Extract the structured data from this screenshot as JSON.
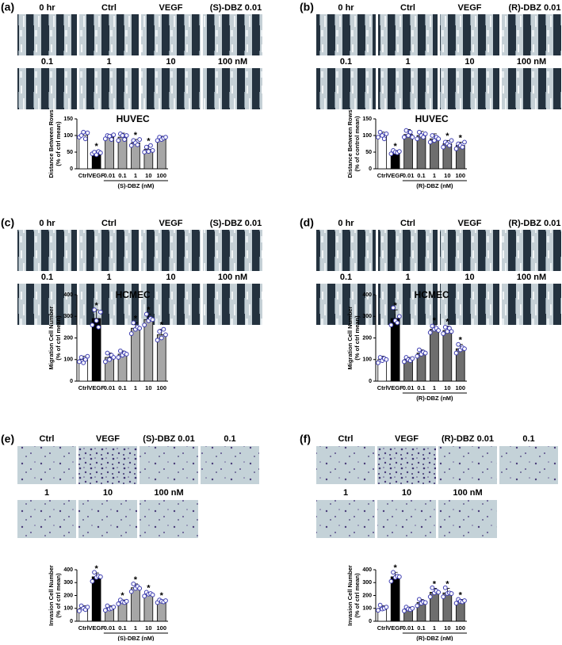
{
  "panels": [
    {
      "label": "(a)",
      "image_labels": [
        "0 hr",
        "Ctrl",
        "VEGF",
        "(S)-DBZ 0.01",
        "0.1",
        "1",
        "10",
        "100 nM"
      ]
    },
    {
      "label": "(b)",
      "image_labels": [
        "0 hr",
        "Ctrl",
        "VEGF",
        "(R)-DBZ 0.01",
        "0.1",
        "1",
        "10",
        "100 nM"
      ]
    },
    {
      "label": "(c)",
      "image_labels": [
        "0 hr",
        "Ctrl",
        "VEGF",
        "(S)-DBZ 0.01",
        "0.1",
        "1",
        "10",
        "100 nM"
      ]
    },
    {
      "label": "(d)",
      "image_labels": [
        "0 hr",
        "Ctrl",
        "VEGF",
        "(R)-DBZ 0.01",
        "0.1",
        "1",
        "10",
        "100 nM"
      ]
    },
    {
      "label": "(e)",
      "image_labels": [
        "Ctrl",
        "VEGF",
        "(S)-DBZ 0.01",
        "0.1",
        "1",
        "10",
        "100 nM"
      ]
    },
    {
      "label": "(f)",
      "image_labels": [
        "Ctrl",
        "VEGF",
        "(R)-DBZ 0.01",
        "0.1",
        "1",
        "10",
        "100 nM"
      ]
    }
  ],
  "chart_data": [
    {
      "type": "bar",
      "title": "HUVEC",
      "ylabel": [
        "Distance Between Rows",
        "(% of ctrl mean)"
      ],
      "xlabel": "(S)-DBZ (nM)",
      "categories": [
        "Ctrl",
        "VEGF",
        "0.01",
        "0.1",
        "1",
        "10",
        "100"
      ],
      "values": [
        100,
        48,
        95,
        95,
        78,
        58,
        90
      ],
      "errors": [
        10,
        6,
        8,
        12,
        10,
        12,
        8
      ],
      "colors": [
        "#ffffff",
        "#000000",
        "#a6a6a6",
        "#a6a6a6",
        "#a6a6a6",
        "#a6a6a6",
        "#a6a6a6"
      ],
      "points": [
        [
          95,
          100,
          110,
          90,
          108
        ],
        [
          45,
          50,
          42,
          52,
          48
        ],
        [
          90,
          100,
          98,
          88,
          102
        ],
        [
          85,
          105,
          100,
          88,
          100
        ],
        [
          70,
          85,
          78,
          72,
          88
        ],
        [
          50,
          65,
          52,
          70,
          55
        ],
        [
          85,
          95,
          88,
          92,
          95
        ]
      ],
      "markers": [
        null,
        "*",
        null,
        null,
        "*",
        "*",
        null
      ],
      "ylim": [
        0,
        150
      ],
      "yticks": [
        0,
        50,
        100,
        150
      ]
    },
    {
      "type": "bar",
      "title": "HUVEC",
      "ylabel": [
        "Distance Between Rows",
        "(% of control mean)"
      ],
      "xlabel": "(R)-DBZ (nM)",
      "categories": [
        "Ctrl",
        "VEGF",
        "0.01",
        "0.1",
        "1",
        "10",
        "100"
      ],
      "values": [
        100,
        50,
        103,
        100,
        90,
        75,
        70
      ],
      "errors": [
        10,
        5,
        15,
        12,
        15,
        10,
        10
      ],
      "colors": [
        "#ffffff",
        "#000000",
        "#6e6e6e",
        "#6e6e6e",
        "#6e6e6e",
        "#6e6e6e",
        "#6e6e6e"
      ],
      "points": [
        [
          95,
          110,
          100,
          90,
          105
        ],
        [
          45,
          55,
          50,
          48,
          52
        ],
        [
          95,
          115,
          100,
          110,
          95
        ],
        [
          90,
          110,
          100,
          95,
          105
        ],
        [
          80,
          100,
          85,
          95,
          90
        ],
        [
          65,
          80,
          75,
          70,
          85
        ],
        [
          60,
          75,
          70,
          65,
          80
        ]
      ],
      "markers": [
        null,
        "*",
        null,
        null,
        null,
        "*",
        "*"
      ],
      "ylim": [
        0,
        150
      ],
      "yticks": [
        0,
        50,
        100,
        150
      ]
    },
    {
      "type": "bar",
      "title": "HCMEC",
      "ylabel": [
        "Migration Cell Number",
        "(% of ctrl mean)"
      ],
      "categories": [
        "Ctrl",
        "VEGF",
        "0.01",
        "0.1",
        "1",
        "10",
        "100"
      ],
      "values": [
        100,
        290,
        110,
        125,
        245,
        285,
        215
      ],
      "errors": [
        15,
        40,
        20,
        15,
        25,
        25,
        25
      ],
      "colors": [
        "#ffffff",
        "#000000",
        "#a6a6a6",
        "#a6a6a6",
        "#a6a6a6",
        "#a6a6a6",
        "#a6a6a6"
      ],
      "points": [
        [
          90,
          110,
          85,
          100,
          115
        ],
        [
          260,
          330,
          280,
          250,
          320
        ],
        [
          90,
          130,
          100,
          120,
          110
        ],
        [
          110,
          140,
          120,
          130,
          125
        ],
        [
          220,
          270,
          240,
          250,
          245
        ],
        [
          260,
          310,
          280,
          290,
          285
        ],
        [
          190,
          230,
          200,
          240,
          215
        ]
      ],
      "markers": [
        null,
        "*",
        null,
        null,
        "*",
        "*",
        "*"
      ],
      "ylim": [
        0,
        400
      ],
      "yticks": [
        0,
        100,
        200,
        300,
        400
      ]
    },
    {
      "type": "bar",
      "title": "HCMEC",
      "ylabel": [
        "Migration Cell Number",
        "(% of ctrl mean)"
      ],
      "xlabel": "(R)-DBZ (nM)",
      "categories": [
        "Ctrl",
        "VEGF",
        "0.01",
        "0.1",
        "1",
        "10",
        "100"
      ],
      "values": [
        100,
        290,
        100,
        130,
        240,
        235,
        150
      ],
      "errors": [
        15,
        40,
        10,
        15,
        20,
        20,
        20
      ],
      "colors": [
        "#ffffff",
        "#000000",
        "#6e6e6e",
        "#6e6e6e",
        "#6e6e6e",
        "#6e6e6e",
        "#6e6e6e"
      ],
      "points": [
        [
          85,
          110,
          95,
          105,
          100
        ],
        [
          260,
          340,
          280,
          270,
          300
        ],
        [
          90,
          110,
          100,
          95,
          105
        ],
        [
          115,
          145,
          125,
          135,
          130
        ],
        [
          225,
          255,
          240,
          245,
          235
        ],
        [
          220,
          250,
          230,
          245,
          230
        ],
        [
          130,
          170,
          145,
          155,
          150
        ]
      ],
      "markers": [
        null,
        "*",
        null,
        null,
        "*",
        "*",
        "*"
      ],
      "ylim": [
        0,
        400
      ],
      "yticks": [
        0,
        100,
        200,
        300,
        400
      ]
    },
    {
      "type": "bar",
      "ylabel": [
        "Invasion Cell Number",
        "(% of ctrl mean)"
      ],
      "xlabel": "(S)-DBZ (nM)",
      "categories": [
        "Ctrl",
        "VEGF",
        "0.01",
        "0.1",
        "1",
        "10",
        "100"
      ],
      "values": [
        100,
        345,
        100,
        150,
        260,
        210,
        155
      ],
      "errors": [
        20,
        30,
        20,
        15,
        30,
        15,
        10
      ],
      "colors": [
        "#ffffff",
        "#000000",
        "#a6a6a6",
        "#a6a6a6",
        "#a6a6a6",
        "#a6a6a6",
        "#a6a6a6"
      ],
      "points": [
        [
          80,
          120,
          100,
          90,
          110
        ],
        [
          310,
          380,
          340,
          350,
          345
        ],
        [
          85,
          120,
          95,
          100,
          110
        ],
        [
          135,
          165,
          150,
          145,
          155
        ],
        [
          230,
          290,
          255,
          270,
          255
        ],
        [
          195,
          225,
          210,
          215,
          205
        ],
        [
          145,
          165,
          155,
          150,
          160
        ]
      ],
      "markers": [
        null,
        "*",
        null,
        "*",
        "*",
        "*",
        "*"
      ],
      "ylim": [
        0,
        400
      ],
      "yticks": [
        0,
        100,
        200,
        300,
        400
      ]
    },
    {
      "type": "bar",
      "ylabel": [
        "Invasion Cell Number",
        "(% of ctrl mean)"
      ],
      "xlabel": "(R)-DBZ (nM)",
      "categories": [
        "Ctrl",
        "VEGF",
        "0.01",
        "0.1",
        "1",
        "10",
        "100"
      ],
      "values": [
        100,
        345,
        95,
        145,
        225,
        220,
        155
      ],
      "errors": [
        20,
        35,
        15,
        25,
        30,
        35,
        15
      ],
      "colors": [
        "#ffffff",
        "#000000",
        "#6e6e6e",
        "#6e6e6e",
        "#6e6e6e",
        "#6e6e6e",
        "#6e6e6e"
      ],
      "points": [
        [
          85,
          125,
          95,
          100,
          110
        ],
        [
          310,
          380,
          340,
          350,
          345
        ],
        [
          80,
          110,
          95,
          90,
          100
        ],
        [
          120,
          170,
          140,
          150,
          145
        ],
        [
          190,
          260,
          220,
          235,
          225
        ],
        [
          190,
          260,
          215,
          220,
          215
        ],
        [
          140,
          170,
          155,
          150,
          160
        ]
      ],
      "markers": [
        null,
        "*",
        null,
        null,
        "*",
        "*",
        "*"
      ],
      "ylim": [
        0,
        400
      ],
      "yticks": [
        0,
        100,
        200,
        300,
        400
      ]
    }
  ]
}
